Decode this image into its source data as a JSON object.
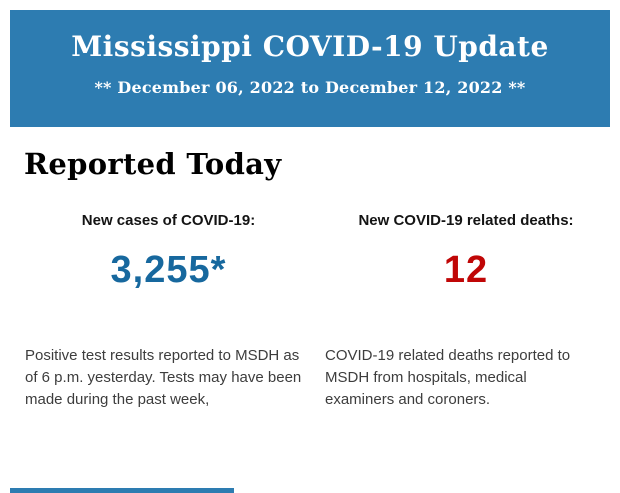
{
  "banner": {
    "title": "Mississippi COVID-19 Update",
    "subtitle": "** December 06, 2022 to December 12, 2022 **"
  },
  "section": {
    "heading": "Reported Today"
  },
  "stats": [
    {
      "id": "new-cases",
      "label": "New cases of COVID-19:",
      "value": "3,255*",
      "description": "Positive test results reported to MSDH as of 6 p.m. yesterday. Tests may have been made during the past week,"
    },
    {
      "id": "new-deaths",
      "label": "New COVID-19 related deaths:",
      "value": "12",
      "description": "COVID-19 related deaths reported to MSDH from hospitals, medical examiners and coroners."
    }
  ],
  "colors": {
    "banner_blue": "#2d7cb1",
    "cases_blue": "#17689e",
    "deaths_red": "#c00606",
    "body_text": "#3d3d3d",
    "label_text": "#141414",
    "heading_text": "#000000",
    "white": "#ffffff"
  }
}
